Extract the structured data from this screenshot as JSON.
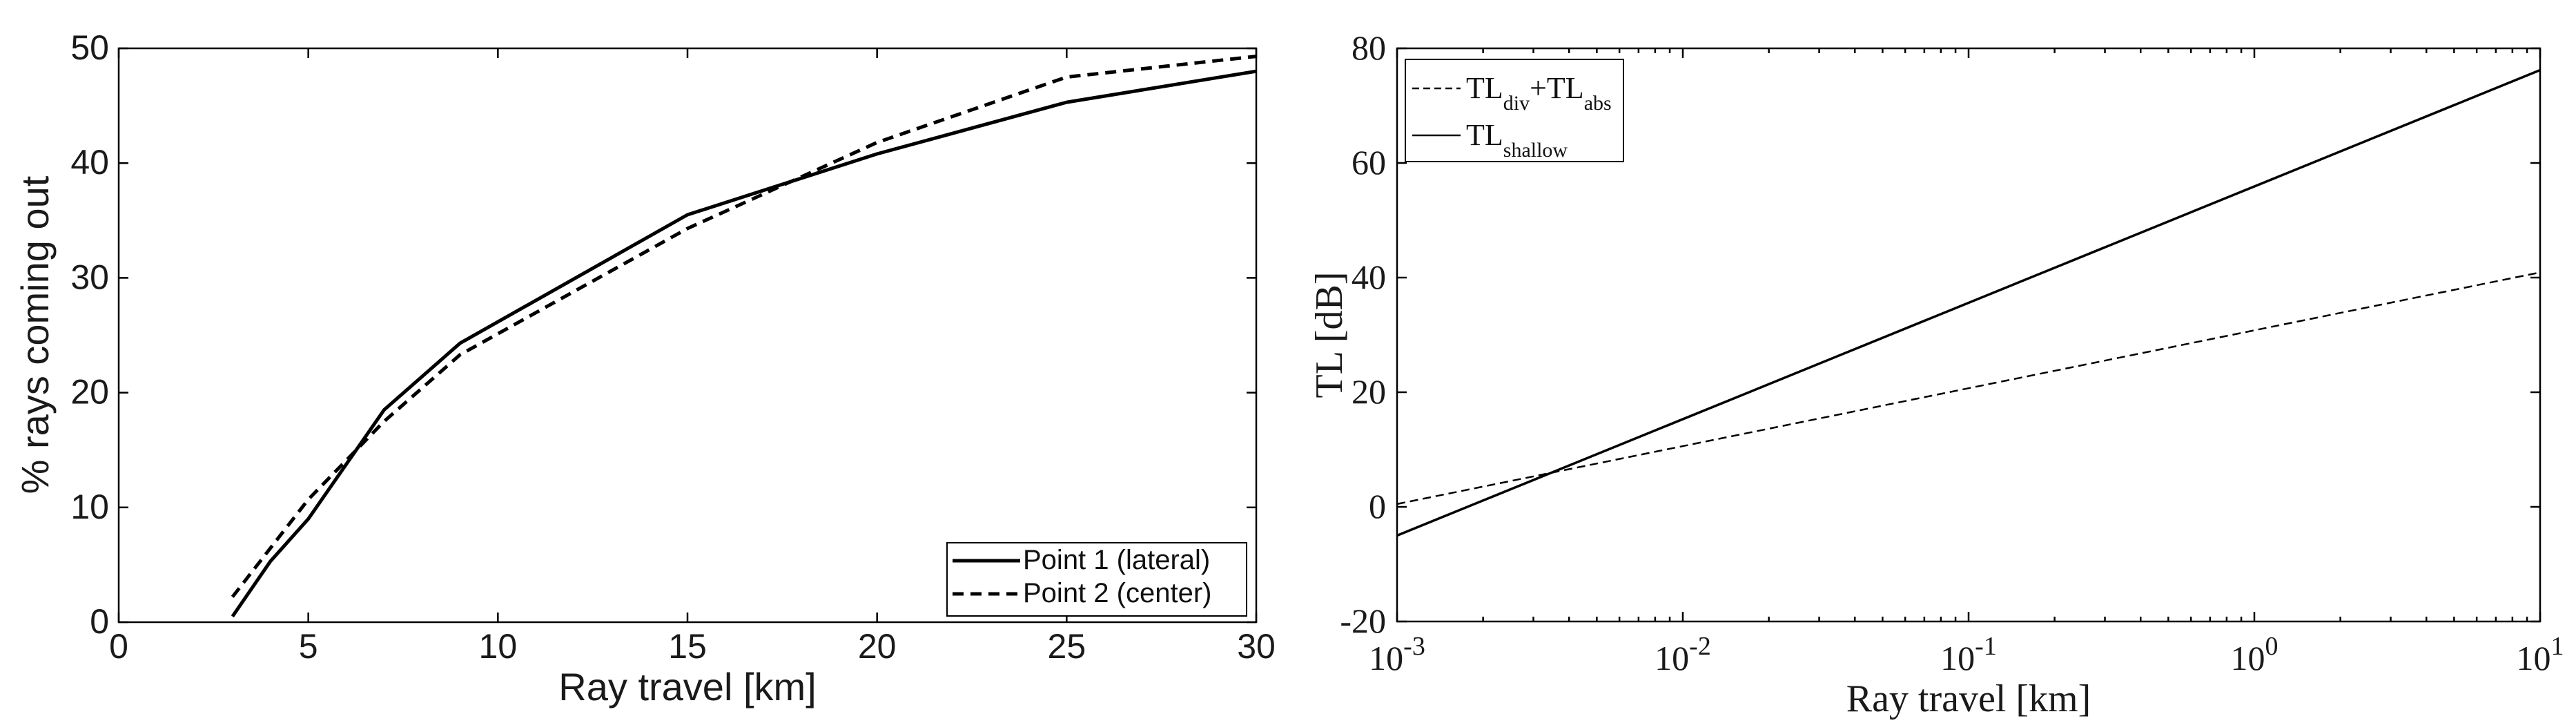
{
  "chart_data": [
    {
      "type": "line",
      "xlabel": "Ray travel [km]",
      "ylabel": "% rays coming out",
      "xlim": [
        0,
        30
      ],
      "ylim": [
        0,
        50
      ],
      "xticks": [
        0,
        5,
        10,
        15,
        20,
        25,
        30
      ],
      "yticks": [
        0,
        10,
        20,
        30,
        40,
        50
      ],
      "x_tick_labels": [
        "0",
        "5",
        "10",
        "15",
        "20",
        "25",
        "30"
      ],
      "y_tick_labels": [
        "0",
        "10",
        "20",
        "30",
        "40",
        "50"
      ],
      "grid": false,
      "legend_position": "bottom-right",
      "series": [
        {
          "name": "Point 1 (lateral)",
          "style": "solid",
          "x": [
            3,
            4,
            5,
            7,
            9,
            15,
            20,
            25,
            30
          ],
          "y": [
            0.5,
            5.3,
            9.0,
            18.5,
            24.3,
            35.5,
            40.8,
            45.3,
            48.0
          ]
        },
        {
          "name": "Point 2 (center)",
          "style": "dashed",
          "x": [
            3,
            5,
            7,
            9,
            15,
            20,
            25,
            30
          ],
          "y": [
            2.2,
            10.7,
            17.5,
            23.3,
            34.3,
            41.8,
            47.5,
            49.3
          ]
        }
      ]
    },
    {
      "type": "line",
      "xlabel": "Ray travel [km]",
      "ylabel": "TL [dB]",
      "xscale": "log",
      "xlim": [
        0.001,
        10
      ],
      "ylim": [
        -20,
        80
      ],
      "xticks": [
        0.001,
        0.01,
        0.1,
        1,
        10
      ],
      "yticks": [
        -20,
        0,
        20,
        40,
        60,
        80
      ],
      "x_tick_labels": [
        {
          "base": "10",
          "exp": "-3"
        },
        {
          "base": "10",
          "exp": "-2"
        },
        {
          "base": "10",
          "exp": "-1"
        },
        {
          "base": "10",
          "exp": "0"
        },
        {
          "base": "10",
          "exp": "1"
        }
      ],
      "y_tick_labels": [
        "-20",
        "0",
        "20",
        "40",
        "60",
        "80"
      ],
      "grid": false,
      "legend_position": "top-left",
      "series": [
        {
          "name_parts": [
            "TL",
            "div",
            "+TL",
            "abs"
          ],
          "style": "dashed",
          "x": [
            0.001,
            10
          ],
          "y": [
            0.5,
            40.9
          ]
        },
        {
          "name_parts": [
            "TL",
            "shallow"
          ],
          "style": "solid",
          "x": [
            0.001,
            10
          ],
          "y": [
            -5.0,
            76.2
          ]
        }
      ]
    }
  ]
}
